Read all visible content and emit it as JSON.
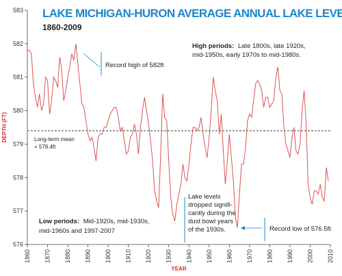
{
  "chart_data": {
    "type": "line",
    "title": "LAKE MICHIGAN-HURON AVERAGE ANNUAL LAKE LEVELS",
    "subtitle": "1860-2009",
    "xlabel": "YEAR",
    "ylabel": "DEPTH (FT)",
    "xlim": [
      1860,
      2010
    ],
    "ylim": [
      576,
      583
    ],
    "x_ticks": [
      1860,
      1870,
      1880,
      1890,
      1900,
      1910,
      1920,
      1930,
      1940,
      1950,
      1960,
      1970,
      1980,
      1990,
      2000,
      2010
    ],
    "y_ticks": [
      576,
      577,
      578,
      579,
      580,
      581,
      582,
      583
    ],
    "series_color": "#d9534f",
    "mean_line": {
      "value": 579.4,
      "label_line1": "Long-term mean",
      "label_line2": "= 579.4ft",
      "color": "#999999"
    },
    "series": [
      {
        "x": [
          1860,
          1861,
          1862,
          1863,
          1864,
          1865,
          1866,
          1867,
          1868,
          1869,
          1870,
          1871,
          1872,
          1873,
          1874,
          1875,
          1876,
          1877,
          1878,
          1879,
          1880,
          1881,
          1882,
          1883,
          1884,
          1885,
          1886,
          1887,
          1888,
          1889,
          1890,
          1891,
          1892,
          1893,
          1894,
          1895,
          1896,
          1897,
          1898,
          1899,
          1900,
          1901,
          1902,
          1903,
          1904,
          1905,
          1906,
          1907,
          1908,
          1909,
          1910,
          1911,
          1912,
          1913,
          1914,
          1915,
          1916,
          1917,
          1918,
          1919,
          1920,
          1921,
          1922,
          1923,
          1924,
          1925,
          1926,
          1927,
          1928,
          1929,
          1930,
          1931,
          1932,
          1933,
          1934,
          1935,
          1936,
          1937,
          1938,
          1939,
          1940,
          1941,
          1942,
          1943,
          1944,
          1945,
          1946,
          1947,
          1948,
          1949,
          1950,
          1951,
          1952,
          1953,
          1954,
          1955,
          1956,
          1957,
          1958,
          1959,
          1960,
          1961,
          1962,
          1963,
          1964,
          1965,
          1966,
          1967,
          1968,
          1969,
          1970,
          1971,
          1972,
          1973,
          1974,
          1975,
          1976,
          1977,
          1978,
          1979,
          1980,
          1981,
          1982,
          1983,
          1984,
          1985,
          1986,
          1987,
          1988,
          1989,
          1990,
          1991,
          1992,
          1993,
          1994,
          1995,
          1996,
          1997,
          1998,
          1999,
          2000,
          2001,
          2002,
          2003,
          2004,
          2005,
          2006,
          2007,
          2008,
          2009
        ],
        "y": [
          581.8,
          581.8,
          581.7,
          580.8,
          580.4,
          580.1,
          580.5,
          580.0,
          580.2,
          581.0,
          580.9,
          579.9,
          580.3,
          581.0,
          580.9,
          580.7,
          581.6,
          581.2,
          580.3,
          580.6,
          581.0,
          581.3,
          581.7,
          581.5,
          582.0,
          581.4,
          580.8,
          580.2,
          580.1,
          579.7,
          579.3,
          579.1,
          579.2,
          578.9,
          578.5,
          579.2,
          579.3,
          579.3,
          579.5,
          579.5,
          579.7,
          579.9,
          580.0,
          580.1,
          580.1,
          579.8,
          579.4,
          579.5,
          579.1,
          578.7,
          578.8,
          579.2,
          579.3,
          579.6,
          579.3,
          578.7,
          579.5,
          580.0,
          580.4,
          580.0,
          579.6,
          579.1,
          578.5,
          577.6,
          577.3,
          577.1,
          578.7,
          580.5,
          579.8,
          579.7,
          578.5,
          577.4,
          576.9,
          576.7,
          577.2,
          577.5,
          577.8,
          578.4,
          578.0,
          577.9,
          578.4,
          579.0,
          579.5,
          579.5,
          579.4,
          579.5,
          579.8,
          579.3,
          578.9,
          578.6,
          579.2,
          580.0,
          581.0,
          580.6,
          580.3,
          579.3,
          579.9,
          578.8,
          577.8,
          578.5,
          579.3,
          578.6,
          577.9,
          576.8,
          576.5,
          577.5,
          578.4,
          578.4,
          578.9,
          579.7,
          579.9,
          579.8,
          580.3,
          580.8,
          580.9,
          580.8,
          580.6,
          580.1,
          580.4,
          580.4,
          580.1,
          580.2,
          580.3,
          581.0,
          581.3,
          580.6,
          580.5,
          579.5,
          579.0,
          578.8,
          578.6,
          579.2,
          579.5,
          578.8,
          578.7,
          579.0,
          580.0,
          580.6,
          579.6,
          577.8,
          577.4,
          577.2,
          577.6,
          577.6,
          577.5,
          577.8,
          577.4,
          577.3,
          578.3,
          577.9
        ]
      }
    ],
    "annotations": {
      "high_label": "High periods:",
      "high_text1": "Late 1800s, late 1920s,",
      "high_text2": "mid-1950s, early 1970s to mid-1980s.",
      "record_high": "Record high of 582ft",
      "low_label": "Low periods:",
      "low_text1": "Mid-1920s, mid-1930s,",
      "low_text2": "mid-1960s and 1997-2007",
      "dust1": "Lake levels",
      "dust2": "dropped signifi-",
      "dust3": "cantly during the",
      "dust4": "dust bowl years",
      "dust5": "of the 1930s.",
      "record_low": "Record low of 576.5ft"
    }
  }
}
